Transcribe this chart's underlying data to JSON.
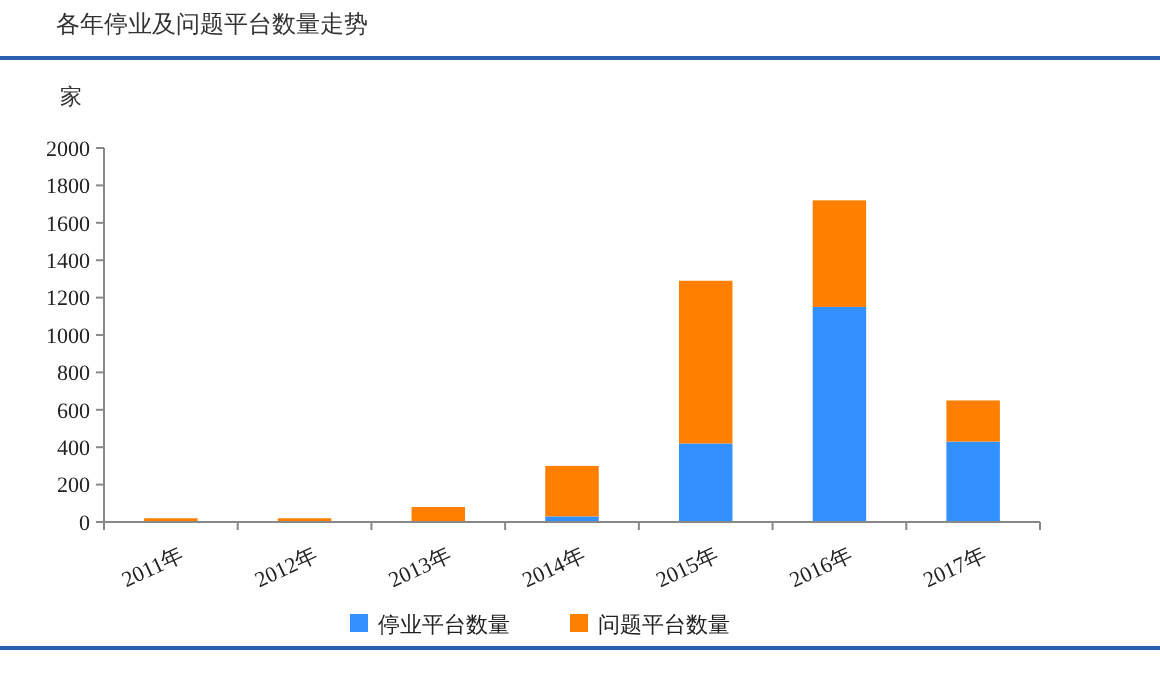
{
  "chart_data": {
    "type": "bar",
    "title": "各年停业及问题平台数量走势",
    "ylabel": "家",
    "categories": [
      "2011年",
      "2012年",
      "2013年",
      "2014年",
      "2015年",
      "2016年",
      "2017年"
    ],
    "stacked": true,
    "series": [
      {
        "name": "停业平台数量",
        "color": "#3391ff",
        "values": [
          null,
          null,
          0,
          30,
          420,
          1150,
          430
        ]
      },
      {
        "name": "问题平台数量",
        "color": "#ff8000",
        "values": [
          20,
          20,
          80,
          270,
          870,
          570,
          220
        ]
      }
    ],
    "ylim": [
      0,
      2000
    ],
    "yticks": [
      0,
      200,
      400,
      600,
      800,
      1000,
      1200,
      1400,
      1600,
      1800,
      2000
    ],
    "grid": false,
    "legend": "bottom"
  }
}
